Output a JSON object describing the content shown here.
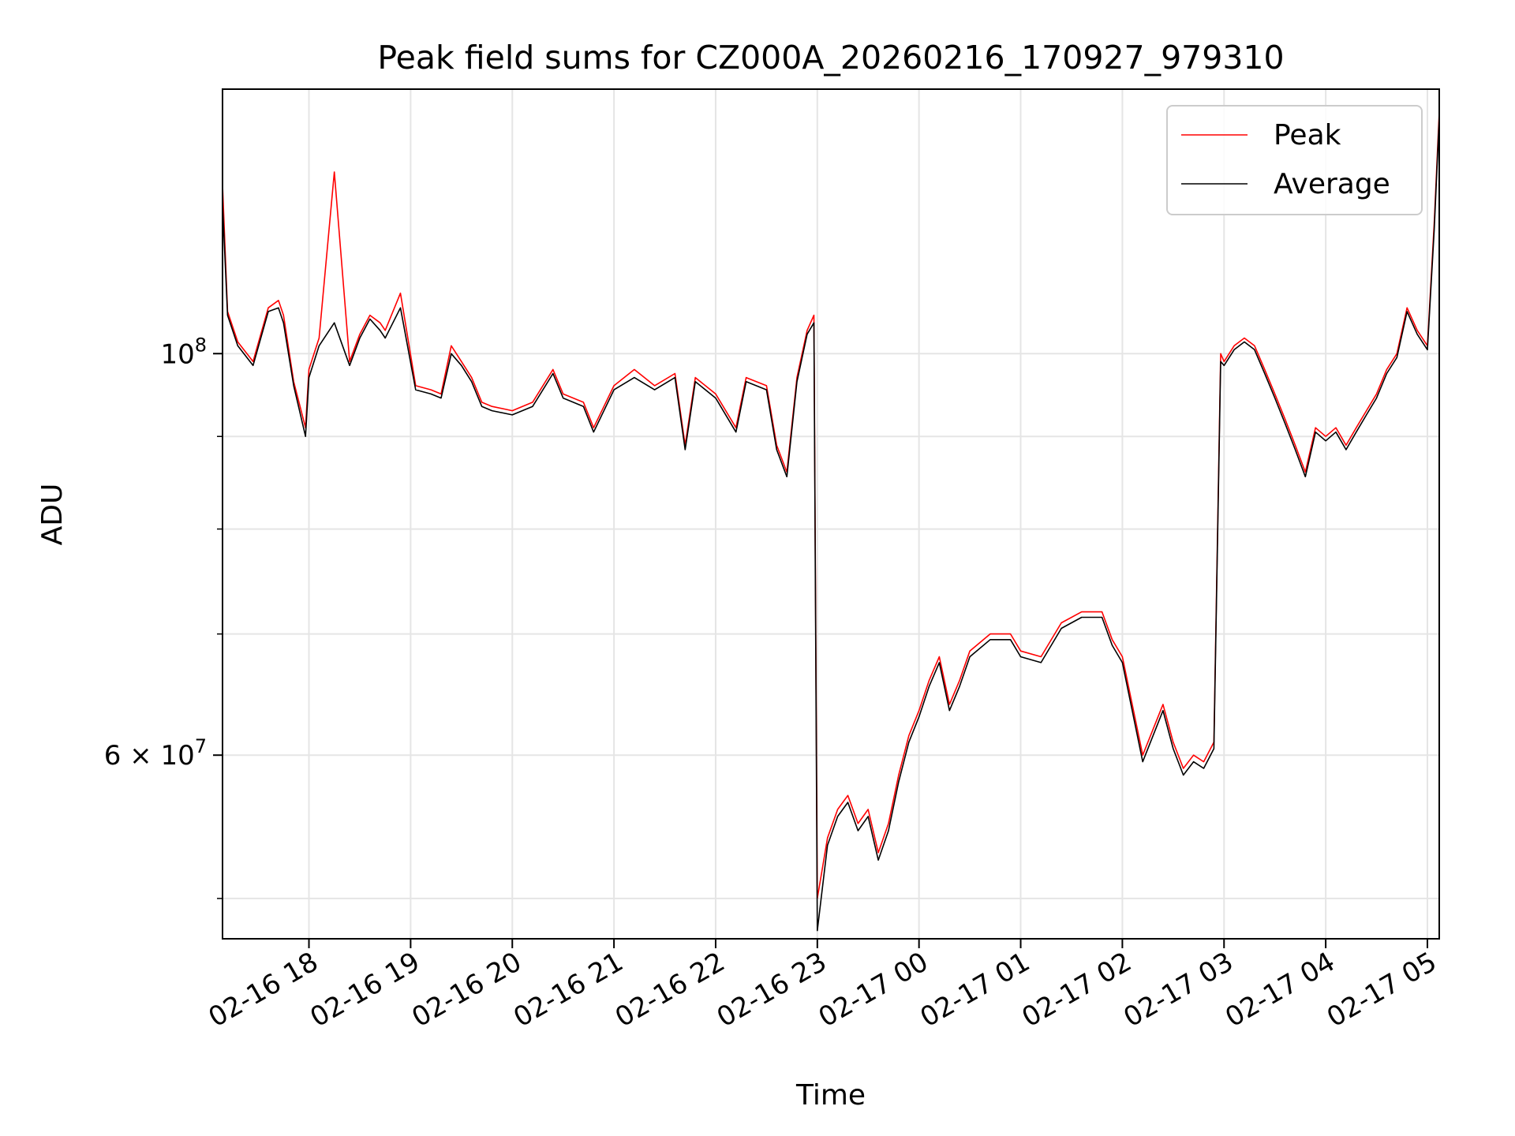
{
  "chart_data": {
    "type": "line",
    "title": "Peak field sums for CZ000A_20260216_170927_979310",
    "xlabel": "Time",
    "ylabel": "ADU",
    "y_scale": "log",
    "ylim": [
      47500000,
      140000000
    ],
    "x_range": [
      "2026-02-16 17:09",
      "2026-02-17 05:07"
    ],
    "x_ticks": [
      {
        "t": "2026-02-16 18:00",
        "label": "02-16 18"
      },
      {
        "t": "2026-02-16 19:00",
        "label": "02-16 19"
      },
      {
        "t": "2026-02-16 20:00",
        "label": "02-16 20"
      },
      {
        "t": "2026-02-16 21:00",
        "label": "02-16 21"
      },
      {
        "t": "2026-02-16 22:00",
        "label": "02-16 22"
      },
      {
        "t": "2026-02-16 23:00",
        "label": "02-16 23"
      },
      {
        "t": "2026-02-17 00:00",
        "label": "02-17 00"
      },
      {
        "t": "2026-02-17 01:00",
        "label": "02-17 01"
      },
      {
        "t": "2026-02-17 02:00",
        "label": "02-17 02"
      },
      {
        "t": "2026-02-17 03:00",
        "label": "02-17 03"
      },
      {
        "t": "2026-02-17 04:00",
        "label": "02-17 04"
      },
      {
        "t": "2026-02-17 05:00",
        "label": "02-17 05"
      }
    ],
    "y_major_ticks": [
      {
        "value": 100000000,
        "base": "10",
        "exp": "8",
        "coef": ""
      },
      {
        "value": 60000000,
        "base": "10",
        "exp": "7",
        "coef": "6 × "
      }
    ],
    "y_minor_ticks": [
      50000000,
      70000000,
      80000000,
      90000000
    ],
    "grid": true,
    "legend_position": "top-right",
    "series": [
      {
        "name": "Peak",
        "color": "#ff0000",
        "x": [
          "2026-02-16 17:09",
          "2026-02-16 17:12",
          "2026-02-16 17:18",
          "2026-02-16 17:27",
          "2026-02-16 17:36",
          "2026-02-16 17:42",
          "2026-02-16 17:45",
          "2026-02-16 17:51",
          "2026-02-16 17:58",
          "2026-02-16 18:00",
          "2026-02-16 18:06",
          "2026-02-16 18:15",
          "2026-02-16 18:24",
          "2026-02-16 18:30",
          "2026-02-16 18:36",
          "2026-02-16 18:42",
          "2026-02-16 18:45",
          "2026-02-16 18:54",
          "2026-02-16 19:03",
          "2026-02-16 19:12",
          "2026-02-16 19:18",
          "2026-02-16 19:24",
          "2026-02-16 19:30",
          "2026-02-16 19:36",
          "2026-02-16 19:42",
          "2026-02-16 19:48",
          "2026-02-16 20:00",
          "2026-02-16 20:12",
          "2026-02-16 20:24",
          "2026-02-16 20:30",
          "2026-02-16 20:42",
          "2026-02-16 20:48",
          "2026-02-16 21:00",
          "2026-02-16 21:12",
          "2026-02-16 21:24",
          "2026-02-16 21:36",
          "2026-02-16 21:42",
          "2026-02-16 21:48",
          "2026-02-16 22:00",
          "2026-02-16 22:12",
          "2026-02-16 22:18",
          "2026-02-16 22:30",
          "2026-02-16 22:36",
          "2026-02-16 22:42",
          "2026-02-16 22:48",
          "2026-02-16 22:54",
          "2026-02-16 22:58",
          "2026-02-16 23:00",
          "2026-02-16 23:06",
          "2026-02-16 23:12",
          "2026-02-16 23:18",
          "2026-02-16 23:24",
          "2026-02-16 23:30",
          "2026-02-16 23:36",
          "2026-02-16 23:42",
          "2026-02-16 23:48",
          "2026-02-16 23:54",
          "2026-02-17 00:00",
          "2026-02-17 00:06",
          "2026-02-17 00:12",
          "2026-02-17 00:18",
          "2026-02-17 00:24",
          "2026-02-17 00:30",
          "2026-02-17 00:42",
          "2026-02-17 00:54",
          "2026-02-17 01:00",
          "2026-02-17 01:12",
          "2026-02-17 01:24",
          "2026-02-17 01:36",
          "2026-02-17 01:48",
          "2026-02-17 01:54",
          "2026-02-17 02:00",
          "2026-02-17 02:12",
          "2026-02-17 02:24",
          "2026-02-17 02:30",
          "2026-02-17 02:36",
          "2026-02-17 02:42",
          "2026-02-17 02:48",
          "2026-02-17 02:54",
          "2026-02-17 02:58",
          "2026-02-17 03:00",
          "2026-02-17 03:06",
          "2026-02-17 03:12",
          "2026-02-17 03:18",
          "2026-02-17 03:24",
          "2026-02-17 03:30",
          "2026-02-17 03:36",
          "2026-02-17 03:42",
          "2026-02-17 03:48",
          "2026-02-17 03:54",
          "2026-02-17 04:00",
          "2026-02-17 04:06",
          "2026-02-17 04:12",
          "2026-02-17 04:18",
          "2026-02-17 04:24",
          "2026-02-17 04:30",
          "2026-02-17 04:36",
          "2026-02-17 04:42",
          "2026-02-17 04:48",
          "2026-02-17 04:54",
          "2026-02-17 05:00",
          "2026-02-17 05:04",
          "2026-02-17 05:07"
        ],
        "y": [
          124000000,
          105500000,
          101500000,
          99000000,
          106000000,
          107000000,
          105000000,
          96500000,
          91000000,
          98000000,
          102000000,
          126000000,
          99000000,
          102500000,
          105000000,
          104000000,
          103000000,
          108000000,
          96000000,
          95500000,
          95000000,
          101000000,
          99000000,
          97000000,
          94000000,
          93500000,
          93000000,
          94000000,
          98000000,
          95000000,
          94000000,
          91000000,
          96000000,
          98000000,
          96000000,
          97500000,
          89000000,
          97000000,
          95000000,
          91000000,
          97000000,
          96000000,
          89000000,
          86000000,
          97000000,
          103000000,
          105000000,
          50000000,
          54000000,
          56000000,
          57000000,
          55000000,
          56000000,
          53000000,
          55000000,
          58500000,
          61500000,
          63500000,
          66000000,
          68000000,
          64000000,
          66000000,
          68500000,
          70000000,
          70000000,
          68500000,
          68000000,
          71000000,
          72000000,
          72000000,
          69500000,
          68000000,
          60000000,
          64000000,
          61000000,
          59000000,
          60000000,
          59500000,
          61000000,
          100000000,
          99000000,
          101000000,
          102000000,
          101000000,
          98000000,
          95000000,
          92000000,
          89000000,
          86000000,
          91000000,
          90000000,
          91000000,
          89000000,
          91000000,
          93000000,
          95000000,
          98000000,
          100000000,
          106000000,
          103000000,
          101000000,
          118000000,
          136000000
        ]
      },
      {
        "name": "Average",
        "color": "#000000",
        "x": [
          "2026-02-16 17:09",
          "2026-02-16 17:12",
          "2026-02-16 17:18",
          "2026-02-16 17:27",
          "2026-02-16 17:36",
          "2026-02-16 17:42",
          "2026-02-16 17:45",
          "2026-02-16 17:51",
          "2026-02-16 17:58",
          "2026-02-16 18:00",
          "2026-02-16 18:06",
          "2026-02-16 18:15",
          "2026-02-16 18:24",
          "2026-02-16 18:30",
          "2026-02-16 18:36",
          "2026-02-16 18:42",
          "2026-02-16 18:45",
          "2026-02-16 18:54",
          "2026-02-16 19:03",
          "2026-02-16 19:12",
          "2026-02-16 19:18",
          "2026-02-16 19:24",
          "2026-02-16 19:30",
          "2026-02-16 19:36",
          "2026-02-16 19:42",
          "2026-02-16 19:48",
          "2026-02-16 20:00",
          "2026-02-16 20:12",
          "2026-02-16 20:24",
          "2026-02-16 20:30",
          "2026-02-16 20:42",
          "2026-02-16 20:48",
          "2026-02-16 21:00",
          "2026-02-16 21:12",
          "2026-02-16 21:24",
          "2026-02-16 21:36",
          "2026-02-16 21:42",
          "2026-02-16 21:48",
          "2026-02-16 22:00",
          "2026-02-16 22:12",
          "2026-02-16 22:18",
          "2026-02-16 22:30",
          "2026-02-16 22:36",
          "2026-02-16 22:42",
          "2026-02-16 22:48",
          "2026-02-16 22:54",
          "2026-02-16 22:58",
          "2026-02-16 23:00",
          "2026-02-16 23:06",
          "2026-02-16 23:12",
          "2026-02-16 23:18",
          "2026-02-16 23:24",
          "2026-02-16 23:30",
          "2026-02-16 23:36",
          "2026-02-16 23:42",
          "2026-02-16 23:48",
          "2026-02-16 23:54",
          "2026-02-17 00:00",
          "2026-02-17 00:06",
          "2026-02-17 00:12",
          "2026-02-17 00:18",
          "2026-02-17 00:24",
          "2026-02-17 00:30",
          "2026-02-17 00:42",
          "2026-02-17 00:54",
          "2026-02-17 01:00",
          "2026-02-17 01:12",
          "2026-02-17 01:24",
          "2026-02-17 01:36",
          "2026-02-17 01:48",
          "2026-02-17 01:54",
          "2026-02-17 02:00",
          "2026-02-17 02:12",
          "2026-02-17 02:24",
          "2026-02-17 02:30",
          "2026-02-17 02:36",
          "2026-02-17 02:42",
          "2026-02-17 02:48",
          "2026-02-17 02:54",
          "2026-02-17 02:58",
          "2026-02-17 03:00",
          "2026-02-17 03:06",
          "2026-02-17 03:12",
          "2026-02-17 03:18",
          "2026-02-17 03:24",
          "2026-02-17 03:30",
          "2026-02-17 03:36",
          "2026-02-17 03:42",
          "2026-02-17 03:48",
          "2026-02-17 03:54",
          "2026-02-17 04:00",
          "2026-02-17 04:06",
          "2026-02-17 04:12",
          "2026-02-17 04:18",
          "2026-02-17 04:24",
          "2026-02-17 04:30",
          "2026-02-17 04:36",
          "2026-02-17 04:42",
          "2026-02-17 04:48",
          "2026-02-17 04:54",
          "2026-02-17 05:00",
          "2026-02-17 05:04",
          "2026-02-17 05:07"
        ],
        "y": [
          121000000,
          105000000,
          101000000,
          98500000,
          105500000,
          106000000,
          104000000,
          96000000,
          90000000,
          97000000,
          101000000,
          104000000,
          98500000,
          102000000,
          104500000,
          103000000,
          102000000,
          106000000,
          95500000,
          95000000,
          94500000,
          100000000,
          98500000,
          96500000,
          93500000,
          93000000,
          92500000,
          93500000,
          97500000,
          94500000,
          93500000,
          90500000,
          95500000,
          97000000,
          95500000,
          97000000,
          88500000,
          96500000,
          94500000,
          90500000,
          96500000,
          95500000,
          88500000,
          85500000,
          96500000,
          102500000,
          104000000,
          48000000,
          53500000,
          55500000,
          56500000,
          54500000,
          55500000,
          52500000,
          54500000,
          58000000,
          61000000,
          63000000,
          65500000,
          67500000,
          63500000,
          65500000,
          68000000,
          69500000,
          69500000,
          68000000,
          67500000,
          70500000,
          71500000,
          71500000,
          69000000,
          67500000,
          59500000,
          63500000,
          60500000,
          58500000,
          59500000,
          59000000,
          60500000,
          99000000,
          98500000,
          100500000,
          101500000,
          100500000,
          97500000,
          94500000,
          91500000,
          88500000,
          85500000,
          90500000,
          89500000,
          90500000,
          88500000,
          90500000,
          92500000,
          94500000,
          97500000,
          99500000,
          105500000,
          102500000,
          100500000,
          117000000,
          135000000
        ]
      }
    ]
  }
}
